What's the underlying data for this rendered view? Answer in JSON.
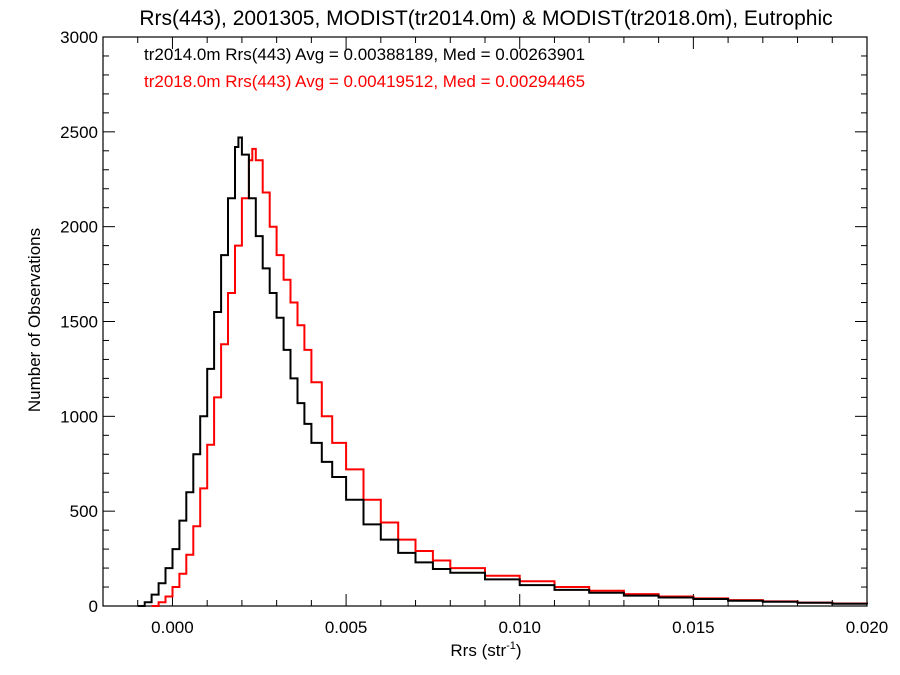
{
  "chart_data": {
    "type": "line",
    "title": "Rrs(443), 2001305, MODIST(tr2014.0m) & MODIST(tr2018.0m), Eutrophic",
    "xlabel_main": "Rrs (str",
    "xlabel_sup": "-1",
    "xlabel_close": ")",
    "ylabel": "Number of Observations",
    "xlim": [
      -0.002,
      0.02
    ],
    "ylim": [
      0,
      3000
    ],
    "x_ticks": [
      0.0,
      0.005,
      0.01,
      0.015,
      0.02
    ],
    "x_tick_labels": [
      "0.000",
      "0.005",
      "0.010",
      "0.015",
      "0.020"
    ],
    "y_ticks": [
      0,
      500,
      1000,
      1500,
      2000,
      2500,
      3000
    ],
    "y_tick_labels": [
      "0",
      "500",
      "1000",
      "1500",
      "2000",
      "2500",
      "3000"
    ],
    "annotations": [
      {
        "text": "tr2014.0m Rrs(443) Avg = 0.00388189, Med = 0.00263901",
        "color": "#000000"
      },
      {
        "text": "tr2018.0m Rrs(443) Avg = 0.00419512, Med = 0.00294465",
        "color": "#ff0000"
      }
    ],
    "series": [
      {
        "color": "#000000",
        "points": [
          [
            -0.001,
            0
          ],
          [
            -0.0008,
            20
          ],
          [
            -0.0006,
            60
          ],
          [
            -0.0004,
            120
          ],
          [
            -0.0002,
            200
          ],
          [
            0.0,
            300
          ],
          [
            0.0002,
            450
          ],
          [
            0.0004,
            600
          ],
          [
            0.0006,
            800
          ],
          [
            0.0008,
            1000
          ],
          [
            0.001,
            1250
          ],
          [
            0.0012,
            1550
          ],
          [
            0.0014,
            1850
          ],
          [
            0.0016,
            2150
          ],
          [
            0.0018,
            2420
          ],
          [
            0.0019,
            2470
          ],
          [
            0.002,
            2380
          ],
          [
            0.0022,
            2150
          ],
          [
            0.0024,
            1950
          ],
          [
            0.0026,
            1780
          ],
          [
            0.0028,
            1650
          ],
          [
            0.003,
            1520
          ],
          [
            0.0032,
            1350
          ],
          [
            0.0034,
            1200
          ],
          [
            0.0036,
            1070
          ],
          [
            0.0038,
            960
          ],
          [
            0.004,
            860
          ],
          [
            0.0043,
            760
          ],
          [
            0.0046,
            680
          ],
          [
            0.005,
            560
          ],
          [
            0.0055,
            430
          ],
          [
            0.006,
            350
          ],
          [
            0.0065,
            280
          ],
          [
            0.007,
            230
          ],
          [
            0.0075,
            195
          ],
          [
            0.008,
            175
          ],
          [
            0.009,
            140
          ],
          [
            0.01,
            110
          ],
          [
            0.011,
            85
          ],
          [
            0.012,
            70
          ],
          [
            0.013,
            55
          ],
          [
            0.014,
            45
          ],
          [
            0.015,
            37
          ],
          [
            0.016,
            28
          ],
          [
            0.017,
            22
          ],
          [
            0.018,
            17
          ],
          [
            0.019,
            12
          ],
          [
            0.02,
            10
          ]
        ]
      },
      {
        "color": "#ff0000",
        "points": [
          [
            -0.0006,
            0
          ],
          [
            -0.0004,
            20
          ],
          [
            -0.0002,
            50
          ],
          [
            0.0,
            100
          ],
          [
            0.0002,
            170
          ],
          [
            0.0004,
            270
          ],
          [
            0.0006,
            420
          ],
          [
            0.0008,
            620
          ],
          [
            0.001,
            850
          ],
          [
            0.0012,
            1100
          ],
          [
            0.0014,
            1380
          ],
          [
            0.0016,
            1650
          ],
          [
            0.0018,
            1900
          ],
          [
            0.002,
            2150
          ],
          [
            0.0022,
            2350
          ],
          [
            0.0023,
            2410
          ],
          [
            0.0024,
            2350
          ],
          [
            0.0026,
            2180
          ],
          [
            0.0028,
            2000
          ],
          [
            0.003,
            1850
          ],
          [
            0.0032,
            1720
          ],
          [
            0.0034,
            1600
          ],
          [
            0.0036,
            1480
          ],
          [
            0.0038,
            1350
          ],
          [
            0.004,
            1180
          ],
          [
            0.0043,
            1000
          ],
          [
            0.0046,
            860
          ],
          [
            0.005,
            720
          ],
          [
            0.0055,
            560
          ],
          [
            0.006,
            440
          ],
          [
            0.0065,
            350
          ],
          [
            0.007,
            290
          ],
          [
            0.0075,
            240
          ],
          [
            0.008,
            200
          ],
          [
            0.009,
            160
          ],
          [
            0.01,
            130
          ],
          [
            0.011,
            100
          ],
          [
            0.012,
            80
          ],
          [
            0.013,
            63
          ],
          [
            0.014,
            50
          ],
          [
            0.015,
            40
          ],
          [
            0.016,
            31
          ],
          [
            0.017,
            24
          ],
          [
            0.018,
            18
          ],
          [
            0.019,
            13
          ],
          [
            0.02,
            10
          ]
        ]
      }
    ]
  }
}
